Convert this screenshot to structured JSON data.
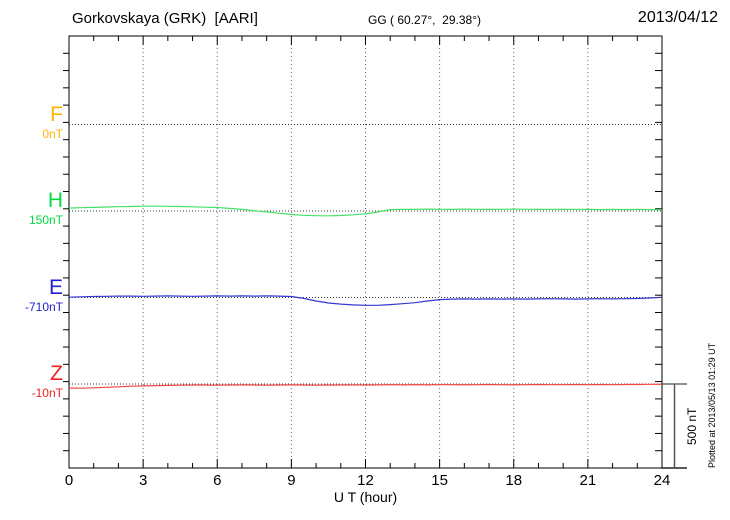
{
  "header": {
    "title": "Gorkovskaya (GRK)  [AARI]",
    "coordinates": "GG ( 60.27°,  29.38°)",
    "date": "2013/04/12"
  },
  "footer_note": "Plotted at 2013/05/13 01:29 UT",
  "chart_data": {
    "type": "line",
    "title": "Gorkovskaya (GRK) [AARI] magnetogram 2013/04/12",
    "xlabel": "U T (hour)",
    "xlim": [
      0,
      24
    ],
    "x_tick_labels": [
      "0",
      "3",
      "6",
      "9",
      "12",
      "15",
      "18",
      "21",
      "24"
    ],
    "x_tick_values": [
      0,
      3,
      6,
      9,
      12,
      15,
      18,
      21,
      24
    ],
    "x_minor_tick_interval_hours": 1,
    "x_start_hour": 0,
    "x_step_hours": 0.5,
    "grid": "dotted vertical lines every 3 h; dotted horizontal line at each trace baseline",
    "legend_position": "left margin, one colored label per trace",
    "y_axis": {
      "minor_tick_nT": 100,
      "trace_spacing_nT": 500
    },
    "scale_bar": {
      "label": "500 nT",
      "span_nT": 500
    },
    "series": [
      {
        "name": "F",
        "baseline_value_label": "0nT",
        "label_color": "#ffb300",
        "trace_color": "#ffb300",
        "trace_visible": false,
        "offsets_nT": []
      },
      {
        "name": "H",
        "baseline_value_label": "150nT",
        "label_color": "#00dd44",
        "trace_color": "#46e066",
        "trace_visible": true,
        "offsets_nT": [
          17,
          19,
          21,
          23,
          25,
          26,
          28,
          28,
          27,
          26,
          24,
          22,
          20,
          15,
          9,
          2,
          -5,
          -13,
          -20,
          -25,
          -27,
          -28,
          -26,
          -22,
          -16,
          -6,
          8,
          10,
          9,
          11,
          10,
          9,
          11,
          10,
          9,
          10,
          11,
          10,
          9,
          10,
          9,
          10,
          9,
          8,
          9,
          8,
          9,
          8,
          7
        ]
      },
      {
        "name": "E",
        "baseline_value_label": "-710nT",
        "label_color": "#2222cc",
        "trace_color": "#3338d0",
        "trace_visible": true,
        "offsets_nT": [
          2,
          4,
          6,
          7,
          8,
          8,
          7,
          8,
          9,
          8,
          7,
          8,
          9,
          8,
          9,
          8,
          9,
          8,
          6,
          -5,
          -20,
          -32,
          -38,
          -43,
          -45,
          -45,
          -41,
          -36,
          -30,
          -20,
          -12,
          -9,
          -8,
          -9,
          -8,
          -9,
          -8,
          -9,
          -8,
          -7,
          -8,
          -9,
          -8,
          -7,
          -8,
          -7,
          -6,
          -3,
          1
        ]
      },
      {
        "name": "Z",
        "baseline_value_label": "-10nT",
        "label_color": "#ee2222",
        "trace_color": "#f04545",
        "trace_visible": true,
        "offsets_nT": [
          -23,
          -24,
          -22,
          -19,
          -16,
          -13,
          -11,
          -9,
          -8,
          -7,
          -6,
          -6,
          -7,
          -6,
          -5,
          -6,
          -7,
          -6,
          -5,
          -6,
          -7,
          -6,
          -6,
          -5,
          -6,
          -5,
          -4,
          -5,
          -4,
          -5,
          -4,
          -4,
          -5,
          -4,
          -3,
          -4,
          -5,
          -4,
          -3,
          -4,
          -4,
          -3,
          -4,
          -3,
          -4,
          -3,
          -3,
          -2,
          -2
        ]
      }
    ]
  }
}
